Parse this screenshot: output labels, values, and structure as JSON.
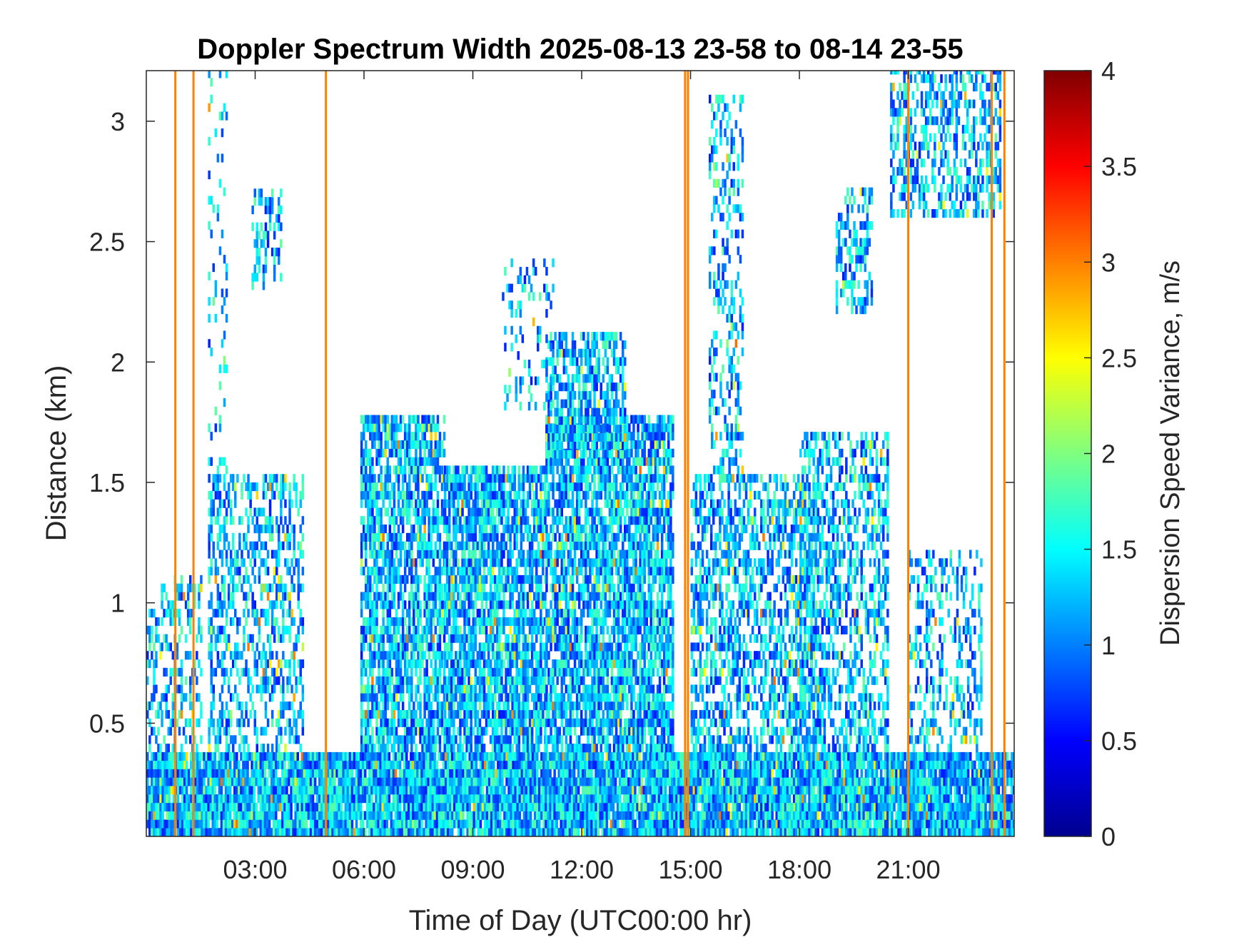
{
  "chart_data": {
    "type": "heatmap",
    "title": "Doppler Spectrum Width 2025-08-13 23-58 to 08-14 23-55",
    "xlabel": "Time of Day (UTC00:00 hr)",
    "ylabel": "Distance (km)",
    "colorbar_label": "Dispersion Speed Variance, m/s",
    "colormap": "jet",
    "xlim": [
      0.0,
      23.92
    ],
    "ylim": [
      0.03,
      3.21
    ],
    "clim": [
      0,
      4
    ],
    "x_ticks": [
      {
        "value": 3,
        "label": "03:00"
      },
      {
        "value": 6,
        "label": "06:00"
      },
      {
        "value": 9,
        "label": "09:00"
      },
      {
        "value": 12,
        "label": "12:00"
      },
      {
        "value": 15,
        "label": "15:00"
      },
      {
        "value": 18,
        "label": "18:00"
      },
      {
        "value": 21,
        "label": "21:00"
      }
    ],
    "y_ticks": [
      {
        "value": 0.5,
        "label": "0.5"
      },
      {
        "value": 1,
        "label": "1"
      },
      {
        "value": 1.5,
        "label": "1.5"
      },
      {
        "value": 2,
        "label": "2"
      },
      {
        "value": 2.5,
        "label": "2.5"
      },
      {
        "value": 3,
        "label": "3"
      }
    ],
    "colorbar_ticks": [
      {
        "value": 0,
        "label": "0"
      },
      {
        "value": 0.5,
        "label": "0.5"
      },
      {
        "value": 1,
        "label": "1"
      },
      {
        "value": 1.5,
        "label": "1.5"
      },
      {
        "value": 2,
        "label": "2"
      },
      {
        "value": 2.5,
        "label": "2.5"
      },
      {
        "value": 3,
        "label": "3"
      },
      {
        "value": 3.5,
        "label": "3.5"
      },
      {
        "value": 4,
        "label": "4"
      }
    ],
    "grid": false,
    "typical_value": 1.3,
    "vertical_streaks": [
      {
        "time": 0.8,
        "value": 3.0
      },
      {
        "time": 1.3,
        "value": 3.0
      },
      {
        "time": 4.95,
        "value": 3.0
      },
      {
        "time": 14.85,
        "value": 3.0
      },
      {
        "time": 14.93,
        "value": 3.0
      },
      {
        "time": 21.0,
        "value": 3.0
      },
      {
        "time": 23.3,
        "value": 3.0
      },
      {
        "time": 23.65,
        "value": 3.0
      }
    ],
    "echo_regions": [
      {
        "t": [
          0.0,
          23.92
        ],
        "h": [
          0.03,
          0.38
        ],
        "density": 0.95
      },
      {
        "t": [
          0.0,
          0.4
        ],
        "h": [
          0.38,
          0.95
        ],
        "density": 0.35
      },
      {
        "t": [
          0.4,
          1.5
        ],
        "h": [
          0.38,
          1.1
        ],
        "density": 0.35
      },
      {
        "t": [
          1.7,
          4.3
        ],
        "h": [
          0.38,
          1.5
        ],
        "density": 0.45
      },
      {
        "t": [
          2.9,
          3.7
        ],
        "h": [
          2.3,
          2.7
        ],
        "density": 0.45
      },
      {
        "t": [
          1.7,
          2.2
        ],
        "h": [
          1.5,
          3.2
        ],
        "density": 0.15
      },
      {
        "t": [
          5.9,
          8.2
        ],
        "h": [
          0.38,
          1.75
        ],
        "density": 0.75
      },
      {
        "t": [
          8.2,
          11.0
        ],
        "h": [
          0.38,
          1.55
        ],
        "density": 0.8
      },
      {
        "t": [
          11.0,
          14.5
        ],
        "h": [
          0.38,
          1.75
        ],
        "density": 0.8
      },
      {
        "t": [
          11.0,
          13.2
        ],
        "h": [
          1.6,
          2.1
        ],
        "density": 0.6
      },
      {
        "t": [
          9.8,
          11.2
        ],
        "h": [
          1.8,
          2.4
        ],
        "density": 0.2
      },
      {
        "t": [
          15.0,
          18.5
        ],
        "h": [
          0.38,
          1.5
        ],
        "density": 0.55
      },
      {
        "t": [
          15.5,
          16.4
        ],
        "h": [
          1.5,
          3.1
        ],
        "density": 0.35
      },
      {
        "t": [
          18.0,
          20.4
        ],
        "h": [
          0.38,
          1.7
        ],
        "density": 0.5
      },
      {
        "t": [
          19.0,
          20.0
        ],
        "h": [
          2.2,
          2.7
        ],
        "density": 0.45
      },
      {
        "t": [
          20.5,
          23.5
        ],
        "h": [
          2.6,
          3.2
        ],
        "density": 0.45
      },
      {
        "t": [
          21.0,
          23.0
        ],
        "h": [
          0.38,
          1.2
        ],
        "density": 0.3
      }
    ]
  }
}
